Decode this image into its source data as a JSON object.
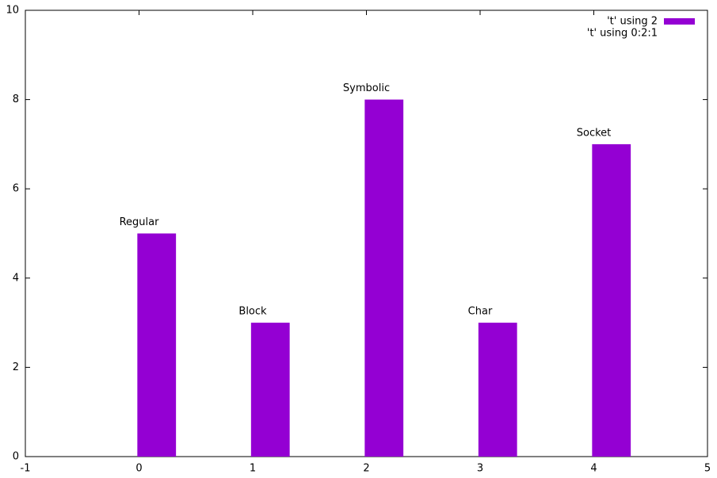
{
  "chart_data": {
    "type": "bar",
    "x": [
      0,
      1,
      2,
      3,
      4
    ],
    "categories": [
      "Regular",
      "Block",
      "Symbolic",
      "Char",
      "Socket"
    ],
    "series": [
      {
        "name": "'t' using 2",
        "color": "#9400d3",
        "values": [
          5,
          3,
          8,
          3,
          7
        ]
      }
    ],
    "label_series_name": "'t' using 0:2:1",
    "xlim": [
      -1,
      5
    ],
    "xticks": [
      -1,
      0,
      1,
      2,
      3,
      4,
      5
    ],
    "ylim": [
      0,
      10
    ],
    "yticks": [
      0,
      2,
      4,
      6,
      8,
      10
    ],
    "grid": false,
    "legend": "top-right"
  }
}
